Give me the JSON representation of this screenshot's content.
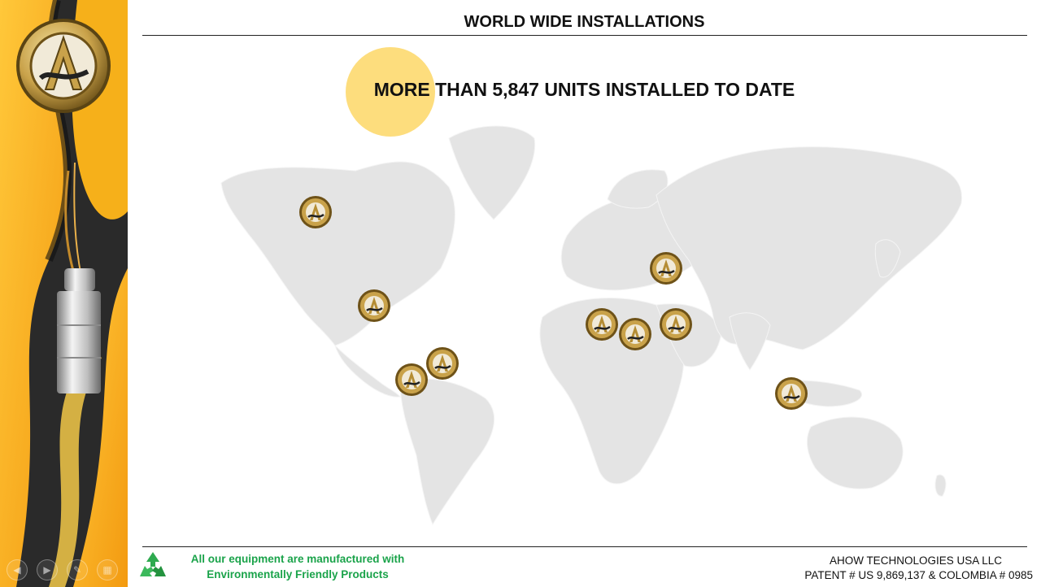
{
  "slide": {
    "title": "WORLD WIDE INSTALLATIONS",
    "headline": "MORE THAN 5,847 UNITS INSTALLED TO DATE"
  },
  "footer": {
    "eco_line1": "All our equipment are manufactured with",
    "eco_line2": "Environmentally Friendly Products",
    "company": "AHOW TECHNOLOGIES  USA LLC",
    "patent": "PATENT # US 9,869,137 & COLOMBIA # 0985"
  },
  "presenter_controls": [
    {
      "name": "previous-slide-button",
      "icon": "◀"
    },
    {
      "name": "next-slide-button",
      "icon": "▶"
    },
    {
      "name": "pen-tool-button",
      "icon": "✎"
    },
    {
      "name": "slides-overview-button",
      "icon": "▦"
    },
    {
      "name": "zoom-button",
      "icon": "⌕"
    },
    {
      "name": "more-options-button",
      "icon": "⋯"
    }
  ],
  "colors": {
    "brand_yellow": "#f7b21b",
    "brand_black": "#1f1f1f",
    "eco_green": "#1aa34a",
    "map_gray": "#e4e4e4",
    "highlight_circle": "#fcd55c"
  },
  "installation_markers": [
    {
      "region": "Western Canada"
    },
    {
      "region": "United States"
    },
    {
      "region": "Colombia"
    },
    {
      "region": "Venezuela"
    },
    {
      "region": "North Africa"
    },
    {
      "region": "Egypt"
    },
    {
      "region": "Arabian Gulf"
    },
    {
      "region": "Ukraine"
    },
    {
      "region": "Indonesia"
    }
  ]
}
